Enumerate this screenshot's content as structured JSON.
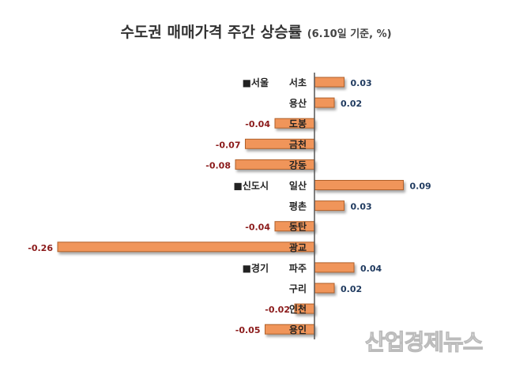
{
  "chart_data": {
    "type": "bar",
    "orientation": "horizontal",
    "title": "수도권 매매가격 주간 상승률",
    "subtitle": "(6.10일 기준, %)",
    "groups": [
      {
        "name": "■서울",
        "start": 0
      },
      {
        "name": "■신도시",
        "start": 5
      },
      {
        "name": "■경기",
        "start": 9
      }
    ],
    "categories": [
      "서초",
      "용산",
      "도봉",
      "금천",
      "강동",
      "일산",
      "평촌",
      "동탄",
      "광교",
      "파주",
      "구리",
      "인천",
      "용인"
    ],
    "values": [
      0.03,
      0.02,
      -0.04,
      -0.07,
      -0.08,
      0.09,
      0.03,
      -0.04,
      -0.26,
      0.04,
      0.02,
      -0.02,
      -0.05
    ],
    "value_labels": [
      "0.03",
      "0.02",
      "-0.04",
      "-0.07",
      "-0.08",
      "0.09",
      "0.03",
      "-0.04",
      "-0.26",
      "0.04",
      "0.02",
      "-0.02",
      "-0.05"
    ],
    "colors": {
      "bar": "#F0955A",
      "bar_border": "#B0602A",
      "positive_label": "#1F3A5F",
      "negative_label": "#8B1A1A",
      "axis": "#555555"
    }
  },
  "watermark": "산업경제뉴스"
}
